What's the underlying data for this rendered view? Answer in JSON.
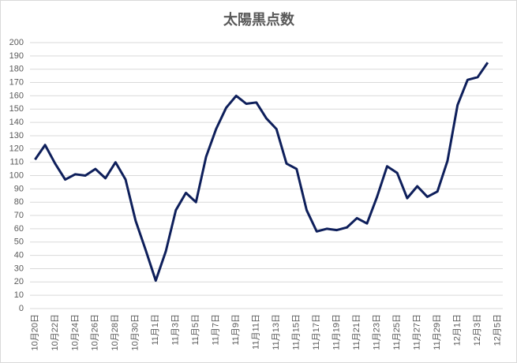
{
  "chart_data": {
    "type": "line",
    "title": "太陽黒点数",
    "categories": [
      "10月20日",
      null,
      "10月22日",
      null,
      "10月24日",
      null,
      "10月26日",
      null,
      "10月28日",
      null,
      "10月30日",
      null,
      "11月1日",
      null,
      "11月3日",
      null,
      "11月5日",
      null,
      "11月7日",
      null,
      "11月9日",
      null,
      "11月11日",
      null,
      "11月13日",
      null,
      "11月15日",
      null,
      "11月17日",
      null,
      "11月19日",
      null,
      "11月21日",
      null,
      "11月23日",
      null,
      "11月25日",
      null,
      "11月27日",
      null,
      "11月29日",
      null,
      "12月1日",
      null,
      "12月3日",
      null,
      "12月5日"
    ],
    "series": [
      {
        "color": "#0e1f5b",
        "values": [
          112,
          123,
          109,
          97,
          101,
          100,
          105,
          98,
          110,
          97,
          66,
          44,
          21,
          43,
          74,
          87,
          80,
          114,
          135,
          151,
          160,
          154,
          155,
          143,
          135,
          109,
          105,
          74,
          58,
          60,
          59,
          61,
          68,
          64,
          84,
          107,
          102,
          83,
          92,
          84,
          88,
          111,
          153,
          172,
          174,
          185,
          null
        ]
      }
    ],
    "ylim": [
      0,
      200
    ],
    "yticks": [
      0,
      10,
      20,
      30,
      40,
      50,
      60,
      70,
      80,
      90,
      100,
      110,
      120,
      130,
      140,
      150,
      160,
      170,
      180,
      190,
      200
    ],
    "grid": true
  }
}
